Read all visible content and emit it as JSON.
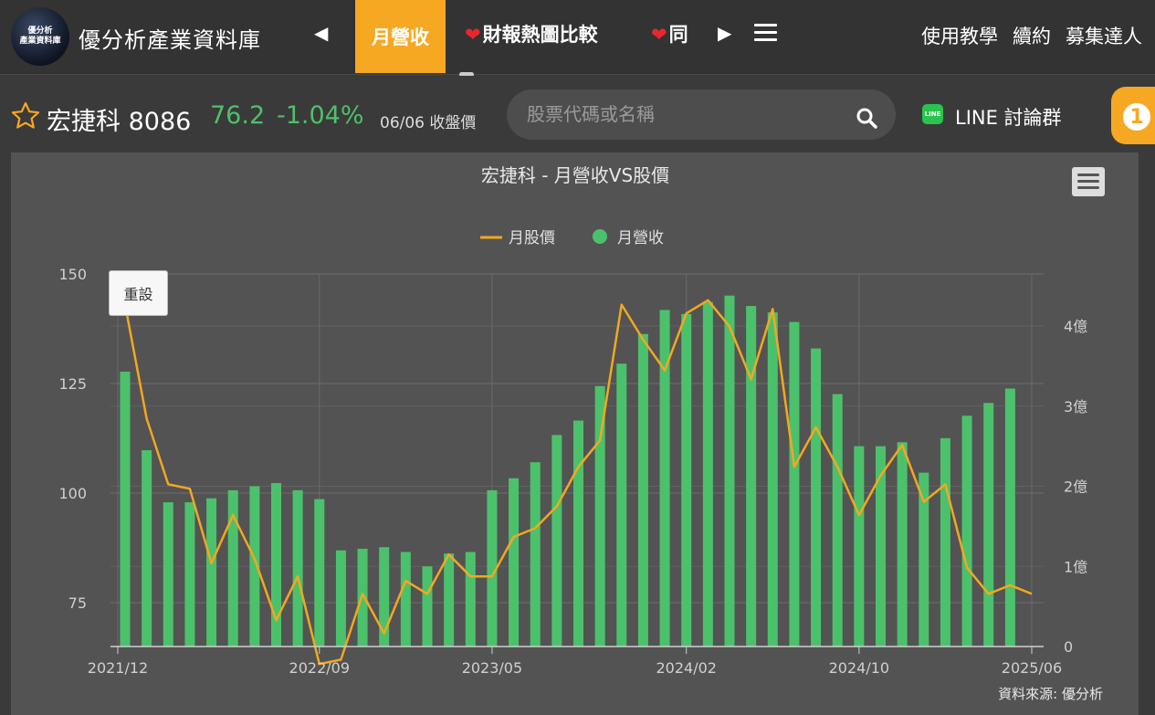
{
  "nav": {
    "logo_line1": "優分析",
    "logo_line2": "產業資料庫",
    "brand": "優分析產業資料庫",
    "active_tab": "月營收",
    "tab_heatmap": "財報熱圖比較",
    "tab_partial": "同",
    "links": [
      "使用教學",
      "續約",
      "募集達人"
    ]
  },
  "stock": {
    "name_code": "宏捷科 8086",
    "price": "76.2",
    "change": "-1.04%",
    "date_status": "06/06 收盤價"
  },
  "search": {
    "placeholder": "股票代碼或名稱"
  },
  "line": {
    "badge": "LINE",
    "label": "LINE 討論群"
  },
  "notification": {
    "count": "1"
  },
  "chart": {
    "reset_label": "重設",
    "source": "資料來源: 優分析"
  },
  "colors": {
    "accent": "#f7a823",
    "up_green": "#4fc06b",
    "bar_green": "#4cc16c",
    "line_orange": "#f2a81f"
  },
  "chart_data": {
    "type": "bar+line",
    "title": "宏捷科 - 月營收VS股價",
    "legend": [
      "月股價",
      "月營收"
    ],
    "x_tick_labels": [
      "2021/12",
      "2022/09",
      "2023/05",
      "2024/02",
      "2024/10",
      "2025/06"
    ],
    "x_tick_index": [
      0,
      9,
      17,
      26,
      34,
      42
    ],
    "left_axis": {
      "ticks": [
        "150",
        "125",
        "100",
        "75"
      ],
      "ylim": [
        65,
        150
      ]
    },
    "right_axis": {
      "ticks": [
        "0",
        "1億",
        "2億",
        "3億",
        "4億"
      ],
      "ylim": [
        0,
        4.65
      ]
    },
    "months": [
      "2021/12",
      "2022/01",
      "2022/02",
      "2022/03",
      "2022/04",
      "2022/05",
      "2022/06",
      "2022/07",
      "2022/08",
      "2022/09",
      "2022/10",
      "2022/11",
      "2022/12",
      "2023/01",
      "2023/02",
      "2023/03",
      "2023/04",
      "2023/05",
      "2023/06",
      "2023/07",
      "2023/08",
      "2023/09",
      "2023/10",
      "2023/11",
      "2023/12",
      "2024/01",
      "2024/02",
      "2024/03",
      "2024/04",
      "2024/05",
      "2024/06",
      "2024/07",
      "2024/08",
      "2024/09",
      "2024/10",
      "2024/11",
      "2024/12",
      "2025/01",
      "2025/02",
      "2025/03",
      "2025/04",
      "2025/05",
      "2025/06"
    ],
    "series": [
      {
        "name": "月營收",
        "unit": "億",
        "values": [
          3.43,
          2.45,
          1.8,
          1.8,
          1.85,
          1.95,
          2.0,
          2.04,
          1.95,
          1.84,
          1.2,
          1.22,
          1.24,
          1.18,
          1.0,
          1.16,
          1.18,
          1.95,
          2.1,
          2.3,
          2.64,
          2.82,
          3.25,
          3.53,
          3.9,
          4.2,
          4.15,
          4.3,
          4.38,
          4.25,
          4.17,
          4.05,
          3.72,
          3.15,
          2.5,
          2.5,
          2.55,
          2.17,
          2.6,
          2.88,
          3.04,
          3.22,
          null
        ]
      },
      {
        "name": "月股價",
        "unit": "元",
        "values": [
          143,
          117,
          102,
          101,
          84,
          95,
          85,
          71,
          81,
          61,
          62,
          77,
          68,
          80,
          77,
          86,
          81,
          81,
          90,
          92,
          97,
          106,
          112,
          143,
          135,
          128,
          141,
          144,
          138,
          126,
          142,
          106,
          115,
          106,
          95,
          104,
          111,
          98,
          102,
          83,
          77,
          79,
          77
        ]
      }
    ]
  }
}
